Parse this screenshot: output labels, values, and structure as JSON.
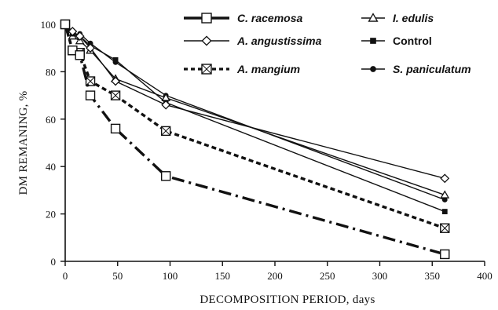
{
  "chart_data": {
    "type": "line",
    "xlabel": "DECOMPOSITION PERIOD, days",
    "ylabel": "DM REMANING, %",
    "xlim": [
      0,
      400
    ],
    "ylim": [
      0,
      100
    ],
    "xticks": [
      0,
      50,
      100,
      150,
      200,
      250,
      300,
      350,
      400
    ],
    "yticks": [
      0,
      20,
      40,
      60,
      80,
      100
    ],
    "grid": false,
    "legend_position": "top-right",
    "series": [
      {
        "name": "C. racemosa",
        "italic": true,
        "marker": "open-square",
        "line": "dash-dot",
        "x": [
          0,
          7,
          14,
          24,
          48,
          96,
          362
        ],
        "y": [
          100,
          89,
          87,
          70,
          56,
          36,
          3
        ]
      },
      {
        "name": "A. angustissima",
        "italic": true,
        "marker": "open-diamond",
        "line": "solid",
        "x": [
          0,
          7,
          14,
          24,
          48,
          96,
          362
        ],
        "y": [
          100,
          97,
          95,
          90,
          76,
          66,
          35
        ]
      },
      {
        "name": "A. mangium",
        "italic": true,
        "marker": "crossed-square",
        "line": "dotted",
        "x": [
          0,
          7,
          14,
          24,
          48,
          96,
          362
        ],
        "y": [
          100,
          89,
          88,
          76,
          70,
          55,
          14
        ]
      },
      {
        "name": "I. edulis",
        "italic": true,
        "marker": "open-triangle",
        "line": "solid",
        "x": [
          0,
          7,
          14,
          24,
          48,
          96,
          362
        ],
        "y": [
          100,
          95,
          93,
          89,
          77,
          69,
          28
        ]
      },
      {
        "name": "Control",
        "italic": false,
        "marker": "filled-square",
        "line": "solid",
        "x": [
          0,
          7,
          14,
          24,
          48,
          96,
          362
        ],
        "y": [
          100,
          96,
          95,
          91,
          85,
          67,
          21
        ]
      },
      {
        "name": "S. paniculatum",
        "italic": true,
        "marker": "filled-circle",
        "line": "solid",
        "x": [
          0,
          7,
          14,
          24,
          48,
          96,
          362
        ],
        "y": [
          100,
          95,
          96,
          92,
          84,
          70,
          26
        ]
      }
    ]
  }
}
